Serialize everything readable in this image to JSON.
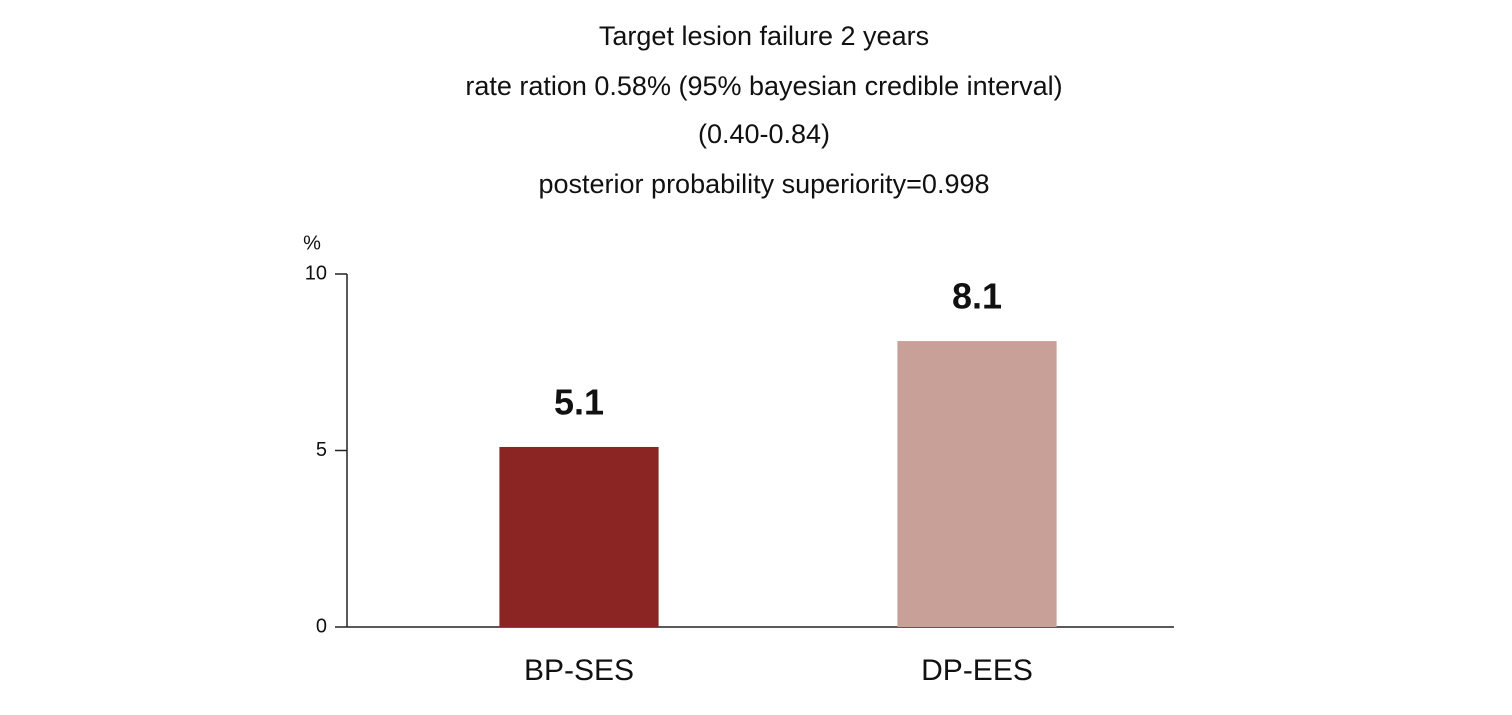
{
  "chart_data": {
    "type": "bar",
    "title": "Target lesion failure 2 years",
    "subtitle": [
      "rate ration 0.58% (95% bayesian credible interval)",
      "(0.40-0.84)",
      "posterior probability superiority=0.998"
    ],
    "y_label": "%",
    "categories": [
      "BP-SES",
      "DP-EES"
    ],
    "values": [
      5.1,
      8.1
    ],
    "colors": [
      "#8b2523",
      "#c9a097"
    ],
    "ylim": [
      0,
      10
    ],
    "yticks": [
      0,
      5,
      10
    ],
    "grid": false
  }
}
